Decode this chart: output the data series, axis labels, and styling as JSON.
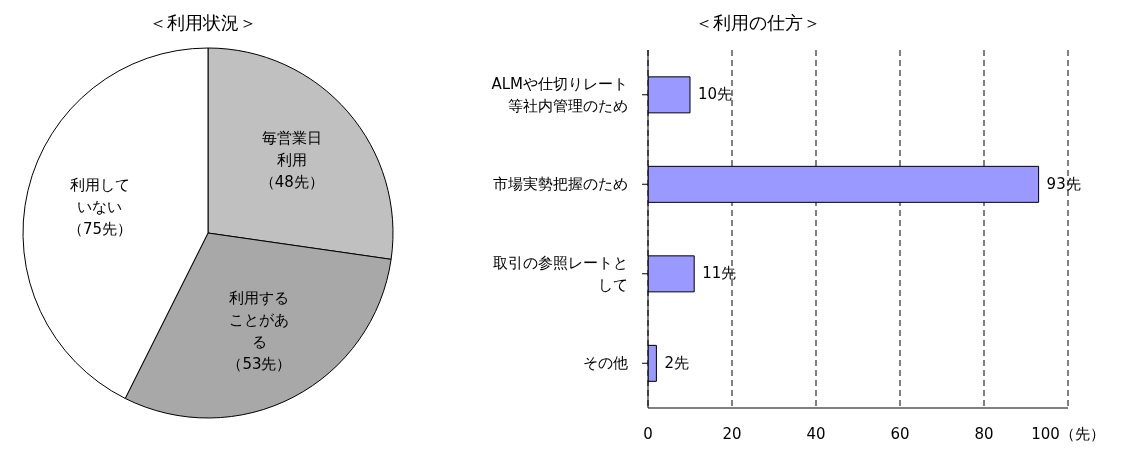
{
  "chart_data": [
    {
      "type": "pie",
      "title": "＜利用状況＞",
      "categories": [
        "毎営業日利用",
        "利用することがある",
        "利用していない"
      ],
      "values": [
        48,
        53,
        75
      ],
      "value_labels": [
        "（48先）",
        "（53先）",
        "（75先）"
      ],
      "colors": [
        "#c0c0c0",
        "#a8a8a8",
        "#ffffff"
      ]
    },
    {
      "type": "bar",
      "orientation": "horizontal",
      "title": "＜利用の仕方＞",
      "categories": [
        "ALMや仕切りレート等社内管理のため",
        "市場実勢把握のため",
        "取引の参照レートとして",
        "その他"
      ],
      "values": [
        10,
        93,
        11,
        2
      ],
      "value_labels": [
        "10先",
        "93先",
        "11先",
        "2先"
      ],
      "color": "#9999ff",
      "xlim": [
        0,
        100
      ],
      "xticks": [
        0,
        20,
        40,
        60,
        80,
        {
          "value": 100,
          "label": "100（先）"
        }
      ],
      "grid": "x"
    }
  ]
}
